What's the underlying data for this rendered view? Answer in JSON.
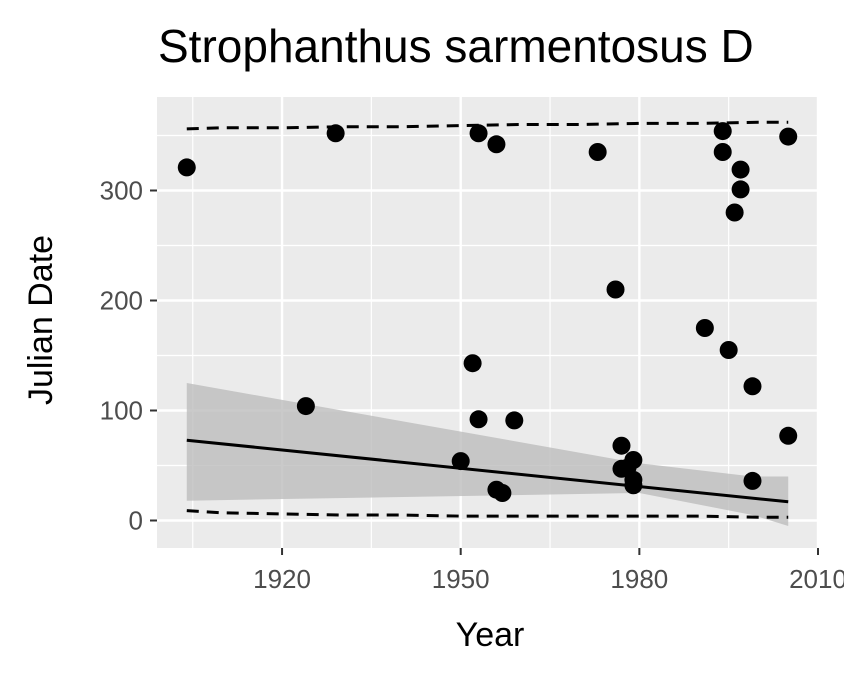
{
  "chart_data": {
    "type": "scatter",
    "title": "Strophanthus sarmentosus D",
    "xlabel": "Year",
    "ylabel": "Julian Date",
    "xlim": [
      1899,
      2010
    ],
    "ylim": [
      -25,
      385
    ],
    "x_ticks": [
      1920,
      1950,
      1980,
      2010
    ],
    "x_tick_labels": [
      "1920",
      "1950",
      "1980",
      "2010"
    ],
    "y_ticks": [
      0,
      100,
      200,
      300
    ],
    "y_tick_labels": [
      "0",
      "100",
      "200",
      "300"
    ],
    "grid": true,
    "points": [
      {
        "x": 1904,
        "y": 321
      },
      {
        "x": 1924,
        "y": 104
      },
      {
        "x": 1929,
        "y": 352
      },
      {
        "x": 1950,
        "y": 54
      },
      {
        "x": 1952,
        "y": 143
      },
      {
        "x": 1953,
        "y": 92
      },
      {
        "x": 1953,
        "y": 352
      },
      {
        "x": 1956,
        "y": 342
      },
      {
        "x": 1956,
        "y": 28
      },
      {
        "x": 1957,
        "y": 25
      },
      {
        "x": 1959,
        "y": 91
      },
      {
        "x": 1973,
        "y": 335
      },
      {
        "x": 1976,
        "y": 210
      },
      {
        "x": 1977,
        "y": 68
      },
      {
        "x": 1977,
        "y": 47
      },
      {
        "x": 1978,
        "y": 48
      },
      {
        "x": 1979,
        "y": 55
      },
      {
        "x": 1979,
        "y": 37
      },
      {
        "x": 1979,
        "y": 32
      },
      {
        "x": 1991,
        "y": 175
      },
      {
        "x": 1994,
        "y": 354
      },
      {
        "x": 1994,
        "y": 335
      },
      {
        "x": 1995,
        "y": 155
      },
      {
        "x": 1996,
        "y": 280
      },
      {
        "x": 1997,
        "y": 319
      },
      {
        "x": 1997,
        "y": 301
      },
      {
        "x": 1999,
        "y": 122
      },
      {
        "x": 1999,
        "y": 36
      },
      {
        "x": 2005,
        "y": 349
      },
      {
        "x": 2005,
        "y": 77
      }
    ],
    "trend_line": {
      "x": [
        1904,
        2005
      ],
      "y": [
        73,
        17
      ]
    },
    "confidence_band": {
      "x": [
        1904,
        1980,
        1999,
        2005
      ],
      "upper": [
        125,
        52,
        40,
        40
      ],
      "lower": [
        18,
        25,
        5,
        -5
      ]
    },
    "upper_dashed": {
      "x": [
        1904,
        1910,
        1920,
        1930,
        1940,
        1950,
        1960,
        1970,
        1980,
        1990,
        2000,
        2005
      ],
      "y": [
        356,
        357,
        357,
        358,
        358,
        359,
        360,
        360,
        361,
        361,
        362,
        362
      ]
    },
    "lower_dashed": {
      "x": [
        1904,
        1910,
        1920,
        1930,
        1940,
        1950,
        1960,
        1970,
        1980,
        1990,
        2000,
        2005
      ],
      "y": [
        9,
        7,
        6,
        5,
        5,
        4,
        4,
        4,
        4,
        4,
        3,
        3
      ]
    },
    "colors": {
      "panel": "#ebebeb",
      "grid": "#ffffff",
      "points": "#000000",
      "trend": "#000000",
      "band": "#bdbdbd"
    }
  }
}
